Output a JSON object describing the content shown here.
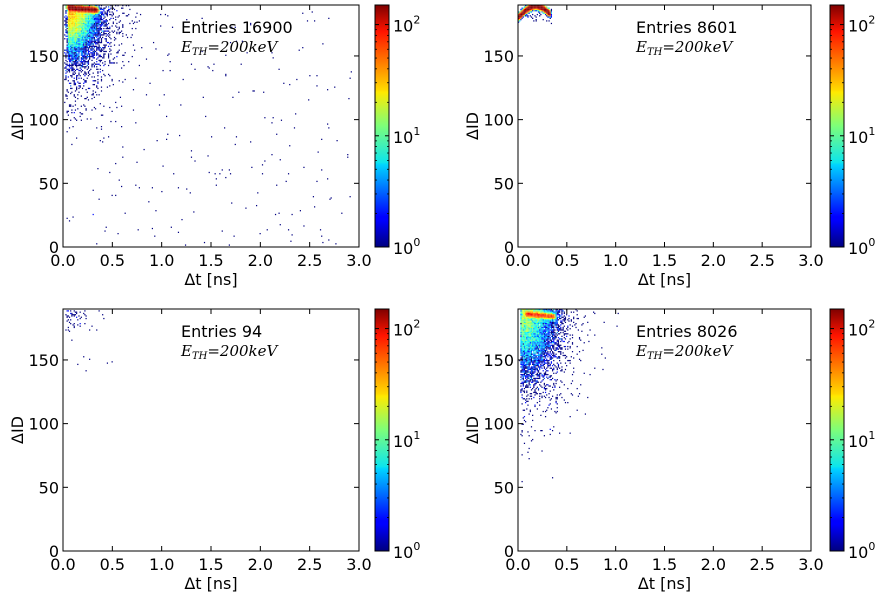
{
  "chart_data": [
    {
      "type": "heatmap",
      "entries_label": "Entries 16900",
      "threshold_label": "E_TH = 200keV",
      "threshold_parts": {
        "symbol": "E",
        "sub": "TH",
        "rest": "=200keV"
      },
      "xlabel": "Δt [ns]",
      "ylabel": "ΔID",
      "xlim": [
        0,
        3.0
      ],
      "ylim": [
        0,
        190
      ],
      "x_ticks": [
        "0.0",
        "0.5",
        "1.0",
        "1.5",
        "2.0",
        "2.5",
        "3.0"
      ],
      "y_ticks": [
        "0",
        "50",
        "100",
        "150"
      ],
      "colorbar_ticks": [
        {
          "base": "10",
          "exp": "0"
        },
        {
          "base": "10",
          "exp": "1"
        },
        {
          "base": "10",
          "exp": "2"
        }
      ],
      "colorbar_range": [
        1,
        150
      ],
      "log_scale": true,
      "distribution": {
        "description": "dense core near (0.15, 185), spread to Δt≈0.6, ΔID≈120, sparse noise across whole range",
        "core": [
          [
            0.15,
            185
          ]
        ],
        "noise": true
      }
    },
    {
      "type": "heatmap",
      "entries_label": "Entries 8601",
      "threshold_label": "E_TH = 200keV",
      "threshold_parts": {
        "symbol": "E",
        "sub": "TH",
        "rest": "=200keV"
      },
      "xlabel": "Δt [ns]",
      "ylabel": "ΔID",
      "xlim": [
        0,
        3.0
      ],
      "ylim": [
        0,
        190
      ],
      "x_ticks": [
        "0.0",
        "0.5",
        "1.0",
        "1.5",
        "2.0",
        "2.5",
        "3.0"
      ],
      "y_ticks": [
        "0",
        "50",
        "100",
        "150"
      ],
      "colorbar_ticks": [
        {
          "base": "10",
          "exp": "0"
        },
        {
          "base": "10",
          "exp": "1"
        },
        {
          "base": "10",
          "exp": "2"
        }
      ],
      "colorbar_range": [
        1,
        150
      ],
      "log_scale": true,
      "distribution": {
        "description": "very dense thin arc near top-left (Δt 0.0–0.35, ΔID 178–190)",
        "core": [
          [
            0.2,
            186
          ]
        ],
        "noise": false
      }
    },
    {
      "type": "heatmap",
      "entries_label": "Entries 94",
      "threshold_label": "E_TH = 200keV",
      "threshold_parts": {
        "symbol": "E",
        "sub": "TH",
        "rest": "=200keV"
      },
      "xlabel": "Δt [ns]",
      "ylabel": "ΔID",
      "xlim": [
        0,
        3.0
      ],
      "ylim": [
        0,
        190
      ],
      "x_ticks": [
        "0.0",
        "0.5",
        "1.0",
        "1.5",
        "2.0",
        "2.5",
        "3.0"
      ],
      "y_ticks": [
        "0",
        "50",
        "100",
        "150"
      ],
      "colorbar_ticks": [
        {
          "base": "10",
          "exp": "0"
        },
        {
          "base": "10",
          "exp": "1"
        },
        {
          "base": "10",
          "exp": "2"
        }
      ],
      "colorbar_range": [
        1,
        150
      ],
      "log_scale": true,
      "distribution": {
        "description": "few scattered counts near top-left (Δt 0.0–0.5, ΔID 140–190)",
        "core": [
          [
            0.15,
            182
          ]
        ],
        "noise": false
      }
    },
    {
      "type": "heatmap",
      "entries_label": "Entries 8026",
      "threshold_label": "E_TH = 200keV",
      "threshold_parts": {
        "symbol": "E",
        "sub": "TH",
        "rest": "=200keV"
      },
      "xlabel": "Δt [ns]",
      "ylabel": "ΔID",
      "xlim": [
        0,
        3.0
      ],
      "ylim": [
        0,
        190
      ],
      "x_ticks": [
        "0.0",
        "0.5",
        "1.0",
        "1.5",
        "2.0",
        "2.5",
        "3.0"
      ],
      "y_ticks": [
        "0",
        "50",
        "100",
        "150"
      ],
      "colorbar_ticks": [
        {
          "base": "10",
          "exp": "0"
        },
        {
          "base": "10",
          "exp": "1"
        },
        {
          "base": "10",
          "exp": "2"
        }
      ],
      "colorbar_range": [
        1,
        150
      ],
      "log_scale": true,
      "distribution": {
        "description": "dense core near (0.2, 182), spread to Δt≈0.8, ΔID≈100",
        "core": [
          [
            0.2,
            182
          ]
        ],
        "noise": false
      }
    }
  ]
}
